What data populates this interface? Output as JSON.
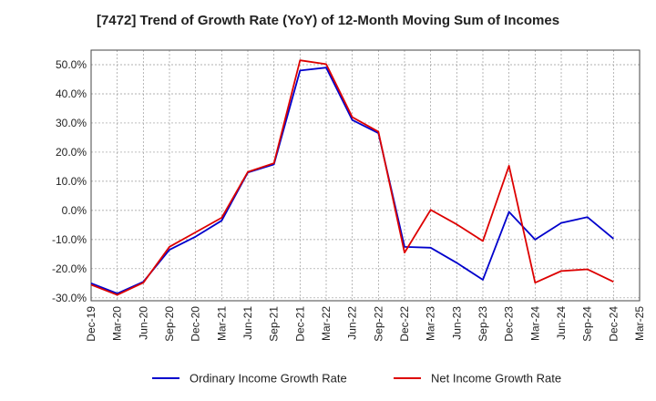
{
  "chart_data": {
    "type": "line",
    "title": "[7472]  Trend of Growth Rate (YoY) of 12-Month Moving Sum of Incomes",
    "xlabel": "",
    "ylabel": "",
    "categories": [
      "Dec-19",
      "Mar-20",
      "Jun-20",
      "Sep-20",
      "Dec-20",
      "Mar-21",
      "Jun-21",
      "Sep-21",
      "Dec-21",
      "Mar-22",
      "Jun-22",
      "Sep-22",
      "Dec-22",
      "Mar-23",
      "Jun-23",
      "Sep-23",
      "Dec-23",
      "Mar-24",
      "Jun-24",
      "Sep-24",
      "Dec-24",
      "Mar-25"
    ],
    "ylim": [
      -31,
      55
    ],
    "yticks": [
      -30,
      -20,
      -10,
      0,
      10,
      20,
      30,
      40,
      50
    ],
    "ytick_labels": [
      "-30.0%",
      "-20.0%",
      "-10.0%",
      "0.0%",
      "10.0%",
      "20.0%",
      "30.0%",
      "40.0%",
      "50.0%"
    ],
    "grid": true,
    "legend_position": "bottom",
    "series": [
      {
        "name": "Ordinary Income Growth Rate",
        "color": "#0000cc",
        "values": [
          -25.0,
          -28.5,
          -24.5,
          -13.5,
          -9.0,
          -3.5,
          13.0,
          15.8,
          48.0,
          49.0,
          31.0,
          26.5,
          -12.5,
          -12.8,
          -18.0,
          -23.8,
          -0.5,
          -10.0,
          -4.3,
          -2.3,
          -9.7,
          null
        ]
      },
      {
        "name": "Net Income Growth Rate",
        "color": "#dd0000",
        "values": [
          -25.5,
          -29.0,
          -24.8,
          -12.5,
          -7.5,
          -2.5,
          13.2,
          16.2,
          51.5,
          50.2,
          32.0,
          27.0,
          -14.5,
          0.2,
          -4.8,
          -10.5,
          15.3,
          -24.8,
          -20.8,
          -20.2,
          -24.5,
          null
        ]
      }
    ]
  }
}
